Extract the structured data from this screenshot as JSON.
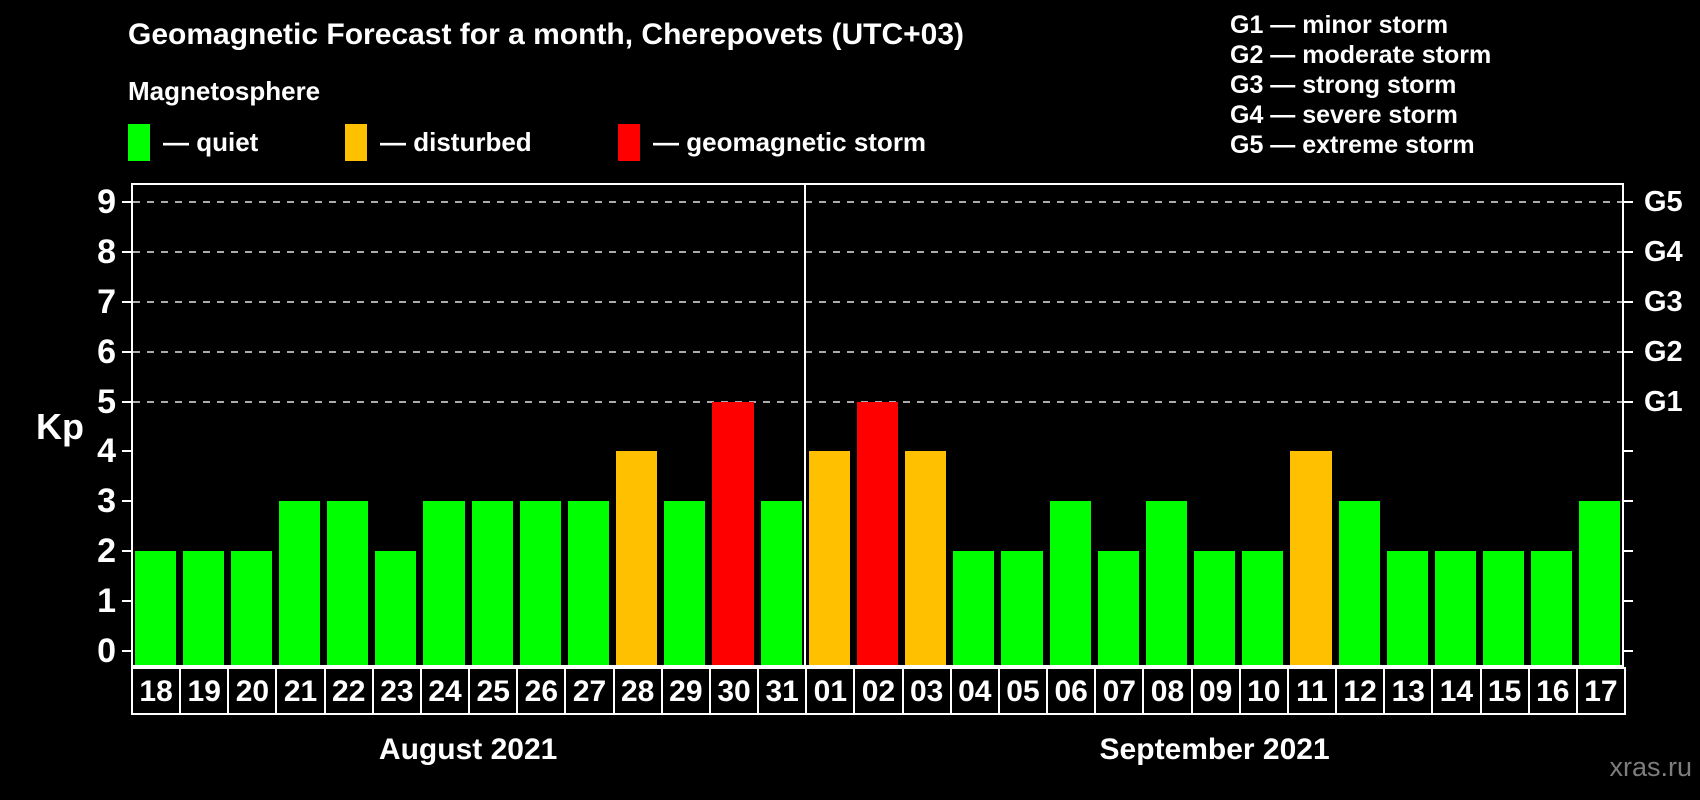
{
  "header": {
    "title": "Geomagnetic Forecast for a month, Cherepovets (UTC+03)"
  },
  "legend": {
    "title": "Magnetosphere",
    "items": [
      {
        "key": "quiet",
        "label": "— quiet",
        "color": "#00ff00"
      },
      {
        "key": "disturbed",
        "label": "— disturbed",
        "color": "#ffc000"
      },
      {
        "key": "storm",
        "label": "— geomagnetic storm",
        "color": "#ff0000"
      }
    ]
  },
  "g_legend": [
    "G1 — minor storm",
    "G2 — moderate storm",
    "G3 — strong storm",
    "G4 — severe storm",
    "G5 — extreme storm"
  ],
  "axes": {
    "y_label": "Kp",
    "y_ticks": [
      0,
      1,
      2,
      3,
      4,
      5,
      6,
      7,
      8,
      9
    ]
  },
  "watermark": "xras.ru",
  "chart_data": {
    "type": "bar",
    "title": "Geomagnetic Forecast for a month, Cherepovets (UTC+03)",
    "xlabel": "",
    "ylabel": "Kp",
    "ylim": [
      0,
      9
    ],
    "grid": "dashed horizontal lines at Kp 5-9 only",
    "legend_position": "top-left",
    "right_axis": [
      {
        "label": "G1",
        "kp": 5
      },
      {
        "label": "G2",
        "kp": 6
      },
      {
        "label": "G3",
        "kp": 7
      },
      {
        "label": "G4",
        "kp": 8
      },
      {
        "label": "G5",
        "kp": 9
      }
    ],
    "status_colors": {
      "quiet": "#00ff00",
      "disturbed": "#ffc000",
      "storm": "#ff0000"
    },
    "months": [
      {
        "label": "August 2021",
        "start_index": 0,
        "days": 14
      },
      {
        "label": "September 2021",
        "start_index": 14,
        "days": 17
      }
    ],
    "points": [
      {
        "day": "18",
        "kp": 2,
        "status": "quiet"
      },
      {
        "day": "19",
        "kp": 2,
        "status": "quiet"
      },
      {
        "day": "20",
        "kp": 2,
        "status": "quiet"
      },
      {
        "day": "21",
        "kp": 3,
        "status": "quiet"
      },
      {
        "day": "22",
        "kp": 3,
        "status": "quiet"
      },
      {
        "day": "23",
        "kp": 2,
        "status": "quiet"
      },
      {
        "day": "24",
        "kp": 3,
        "status": "quiet"
      },
      {
        "day": "25",
        "kp": 3,
        "status": "quiet"
      },
      {
        "day": "26",
        "kp": 3,
        "status": "quiet"
      },
      {
        "day": "27",
        "kp": 3,
        "status": "quiet"
      },
      {
        "day": "28",
        "kp": 4,
        "status": "disturbed"
      },
      {
        "day": "29",
        "kp": 3,
        "status": "quiet"
      },
      {
        "day": "30",
        "kp": 5,
        "status": "storm"
      },
      {
        "day": "31",
        "kp": 3,
        "status": "quiet"
      },
      {
        "day": "01",
        "kp": 4,
        "status": "disturbed"
      },
      {
        "day": "02",
        "kp": 5,
        "status": "storm"
      },
      {
        "day": "03",
        "kp": 4,
        "status": "disturbed"
      },
      {
        "day": "04",
        "kp": 2,
        "status": "quiet"
      },
      {
        "day": "05",
        "kp": 2,
        "status": "quiet"
      },
      {
        "day": "06",
        "kp": 3,
        "status": "quiet"
      },
      {
        "day": "07",
        "kp": 2,
        "status": "quiet"
      },
      {
        "day": "08",
        "kp": 3,
        "status": "quiet"
      },
      {
        "day": "09",
        "kp": 2,
        "status": "quiet"
      },
      {
        "day": "10",
        "kp": 2,
        "status": "quiet"
      },
      {
        "day": "11",
        "kp": 4,
        "status": "disturbed"
      },
      {
        "day": "12",
        "kp": 3,
        "status": "quiet"
      },
      {
        "day": "13",
        "kp": 2,
        "status": "quiet"
      },
      {
        "day": "14",
        "kp": 2,
        "status": "quiet"
      },
      {
        "day": "15",
        "kp": 2,
        "status": "quiet"
      },
      {
        "day": "16",
        "kp": 2,
        "status": "quiet"
      },
      {
        "day": "17",
        "kp": 3,
        "status": "quiet"
      }
    ]
  }
}
